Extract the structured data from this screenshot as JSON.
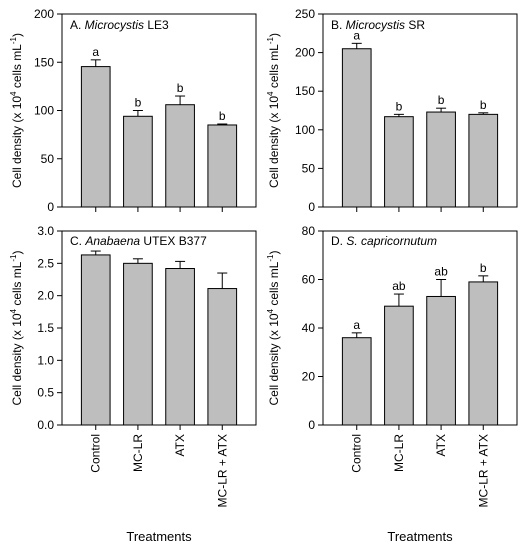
{
  "colors": {
    "bar_fill": "#bebebe",
    "bar_stroke": "#000000",
    "axis": "#000000"
  },
  "chart_data": [
    {
      "type": "bar",
      "panel": "A",
      "title_prefix": "A. ",
      "title_italic": "Microcystis",
      "title_suffix": " LE3",
      "categories": [
        "Control",
        "MC-LR",
        "ATX",
        "MC-LR + ATX"
      ],
      "values": [
        145.5,
        94,
        106,
        85
      ],
      "errors": [
        7,
        6,
        9,
        1
      ],
      "letters": [
        "a",
        "b",
        "b",
        "b"
      ],
      "ylabel": "Cell density (x 10^4 cells mL^-1)",
      "ylim": [
        0,
        200
      ],
      "yticks": [
        0,
        50,
        100,
        150,
        200
      ],
      "ytick_labels": [
        "0",
        "50",
        "100",
        "150",
        "200"
      ]
    },
    {
      "type": "bar",
      "panel": "B",
      "title_prefix": "B. ",
      "title_italic": "Microcystis",
      "title_suffix": " SR",
      "categories": [
        "Control",
        "MC-LR",
        "ATX",
        "MC-LR + ATX"
      ],
      "values": [
        205,
        117,
        123,
        120
      ],
      "errors": [
        7,
        3,
        5,
        2
      ],
      "letters": [
        "a",
        "b",
        "b",
        "b"
      ],
      "ylabel": "Cell density (x 10^4 cells mL^-1)",
      "ylim": [
        0,
        250
      ],
      "yticks": [
        0,
        50,
        100,
        150,
        200,
        250
      ],
      "ytick_labels": [
        "0",
        "50",
        "100",
        "150",
        "200",
        "250"
      ]
    },
    {
      "type": "bar",
      "panel": "C",
      "title_prefix": "C. ",
      "title_italic": "Anabaena",
      "title_suffix": " UTEX B377",
      "categories": [
        "Control",
        "MC-LR",
        "ATX",
        "MC-LR + ATX"
      ],
      "values": [
        2.63,
        2.5,
        2.42,
        2.11
      ],
      "errors": [
        0.06,
        0.07,
        0.11,
        0.24
      ],
      "letters": [
        "",
        "",
        "",
        ""
      ],
      "ylabel": "Cell density (x 10^4 cells mL^-1)",
      "ylim": [
        0,
        3
      ],
      "yticks": [
        0,
        0.5,
        1,
        1.5,
        2,
        2.5,
        3
      ],
      "ytick_labels": [
        "0.0",
        "0.5",
        "1.0",
        "1.5",
        "2.0",
        "2.5",
        "3.0"
      ]
    },
    {
      "type": "bar",
      "panel": "D",
      "title_prefix": "D. ",
      "title_italic": "S. capricornutum",
      "title_suffix": "",
      "categories": [
        "Control",
        "MC-LR",
        "ATX",
        "MC-LR + ATX"
      ],
      "values": [
        36,
        49,
        53,
        59
      ],
      "errors": [
        2,
        5,
        7,
        2.5
      ],
      "letters": [
        "a",
        "ab",
        "ab",
        "b"
      ],
      "ylabel": "Cell density (x 10^4 cells mL^-1)",
      "ylim": [
        0,
        80
      ],
      "yticks": [
        0,
        20,
        40,
        60,
        80
      ],
      "ytick_labels": [
        "0",
        "20",
        "40",
        "60",
        "80"
      ]
    }
  ],
  "xlabels": [
    "Treatments",
    "Treatments"
  ]
}
